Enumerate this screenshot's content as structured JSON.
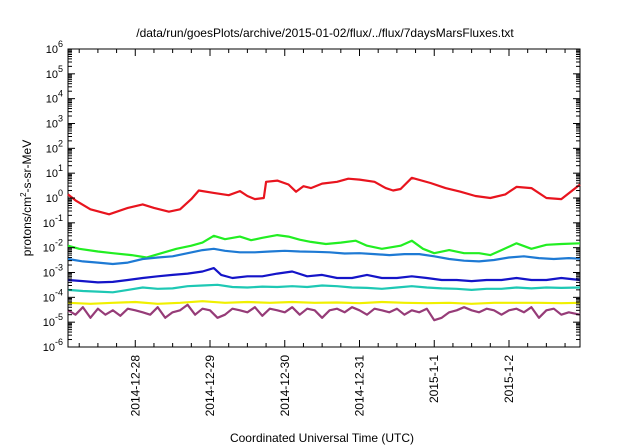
{
  "chart_data": {
    "type": "line",
    "title": "/data/run/goesPlots/archive/2015-01-02/flux/../flux/7daysMarsFluxes.txt",
    "xlabel": "Coordinated Universal Time (UTC)",
    "ylabel_parts": {
      "base": "protons/cm",
      "sup": "2",
      "rest": "-s-sr-MeV"
    },
    "yscale": "log",
    "ylim_exp": [
      -6,
      6
    ],
    "ytick_exponents": [
      -6,
      -5,
      -4,
      -3,
      -2,
      -1,
      0,
      1,
      2,
      3,
      4,
      5,
      6
    ],
    "ytick_base": "10",
    "xlim_days": [
      -0.9,
      5.95
    ],
    "xtick_labels": [
      "2014-12-28",
      "2014-12-29",
      "2014-12-30",
      "2014-12-31",
      "2015-1-1",
      "2015-1-2"
    ],
    "grid": false,
    "legend": "none",
    "series": [
      {
        "color": "#e8141e",
        "x": [
          -0.9,
          -0.8,
          -0.6,
          -0.35,
          -0.1,
          0.1,
          0.25,
          0.45,
          0.6,
          0.75,
          0.85,
          1.05,
          1.25,
          1.4,
          1.5,
          1.6,
          1.72,
          1.75,
          1.9,
          2.05,
          2.15,
          2.25,
          2.35,
          2.5,
          2.7,
          2.85,
          3.0,
          3.2,
          3.35,
          3.45,
          3.55,
          3.7,
          3.95,
          4.15,
          4.35,
          4.55,
          4.75,
          4.95,
          5.1,
          5.3,
          5.5,
          5.7,
          5.95
        ],
        "y": [
          1.4,
          0.8,
          0.35,
          0.22,
          0.4,
          0.55,
          0.4,
          0.28,
          0.35,
          0.9,
          2.0,
          1.6,
          1.3,
          1.9,
          1.2,
          0.9,
          1.0,
          4.5,
          5.0,
          3.5,
          1.8,
          3.0,
          2.5,
          3.8,
          4.5,
          6.0,
          5.5,
          4.5,
          2.5,
          2.0,
          2.3,
          6.5,
          4.0,
          2.5,
          1.8,
          1.2,
          1.0,
          1.4,
          2.8,
          2.5,
          1.0,
          0.9,
          3.5
        ]
      },
      {
        "color": "#22ee22",
        "x": [
          -0.9,
          -0.75,
          -0.5,
          -0.3,
          -0.05,
          0.15,
          0.35,
          0.55,
          0.75,
          0.9,
          1.05,
          1.2,
          1.4,
          1.55,
          1.7,
          1.9,
          2.05,
          2.2,
          2.35,
          2.55,
          2.75,
          2.95,
          3.1,
          3.3,
          3.55,
          3.7,
          3.85,
          4.0,
          4.2,
          4.4,
          4.6,
          4.75,
          4.9,
          5.1,
          5.3,
          5.5,
          5.7,
          5.95
        ],
        "y": [
          0.012,
          0.009,
          0.007,
          0.006,
          0.005,
          0.004,
          0.006,
          0.009,
          0.012,
          0.016,
          0.03,
          0.022,
          0.028,
          0.02,
          0.025,
          0.032,
          0.028,
          0.021,
          0.017,
          0.014,
          0.016,
          0.019,
          0.012,
          0.009,
          0.012,
          0.019,
          0.009,
          0.006,
          0.008,
          0.006,
          0.006,
          0.005,
          0.008,
          0.015,
          0.009,
          0.013,
          0.014,
          0.015
        ]
      },
      {
        "color": "#1e7ad4",
        "x": [
          -0.9,
          -0.7,
          -0.5,
          -0.3,
          -0.1,
          0.1,
          0.3,
          0.5,
          0.7,
          0.9,
          1.05,
          1.2,
          1.4,
          1.6,
          1.8,
          2.0,
          2.2,
          2.4,
          2.6,
          2.8,
          3.0,
          3.2,
          3.4,
          3.6,
          3.8,
          4.0,
          4.2,
          4.4,
          4.6,
          4.8,
          5.0,
          5.2,
          5.4,
          5.6,
          5.8,
          5.95
        ],
        "y": [
          0.0035,
          0.0028,
          0.0025,
          0.0022,
          0.0025,
          0.0035,
          0.004,
          0.0045,
          0.006,
          0.008,
          0.009,
          0.0075,
          0.0065,
          0.0065,
          0.007,
          0.0075,
          0.007,
          0.0068,
          0.0065,
          0.0058,
          0.006,
          0.0055,
          0.005,
          0.0055,
          0.0055,
          0.0045,
          0.0035,
          0.003,
          0.0028,
          0.0032,
          0.004,
          0.0045,
          0.0038,
          0.0035,
          0.0038,
          0.0036
        ]
      },
      {
        "color": "#1414c8",
        "x": [
          -0.9,
          -0.7,
          -0.5,
          -0.3,
          -0.1,
          0.1,
          0.3,
          0.5,
          0.7,
          0.9,
          1.05,
          1.15,
          1.3,
          1.5,
          1.7,
          1.9,
          2.1,
          2.3,
          2.5,
          2.7,
          2.9,
          3.1,
          3.3,
          3.5,
          3.7,
          3.9,
          4.1,
          4.3,
          4.5,
          4.7,
          4.9,
          5.1,
          5.3,
          5.5,
          5.7,
          5.95
        ],
        "y": [
          0.0005,
          0.00045,
          0.0004,
          0.00042,
          0.0005,
          0.0006,
          0.0007,
          0.0008,
          0.0009,
          0.0011,
          0.0015,
          0.0008,
          0.0006,
          0.0007,
          0.0007,
          0.0009,
          0.0011,
          0.0007,
          0.0008,
          0.0006,
          0.0006,
          0.0008,
          0.0006,
          0.0006,
          0.0007,
          0.0006,
          0.0005,
          0.0005,
          0.00045,
          0.0005,
          0.0005,
          0.0006,
          0.0005,
          0.0005,
          0.0006,
          0.0005
        ]
      },
      {
        "color": "#1ec8b4",
        "x": [
          -0.9,
          -0.7,
          -0.5,
          -0.3,
          -0.1,
          0.1,
          0.3,
          0.5,
          0.7,
          0.9,
          1.1,
          1.3,
          1.5,
          1.7,
          1.9,
          2.1,
          2.3,
          2.5,
          2.7,
          2.9,
          3.1,
          3.3,
          3.5,
          3.7,
          3.9,
          4.1,
          4.3,
          4.5,
          4.7,
          4.9,
          5.1,
          5.3,
          5.5,
          5.7,
          5.95
        ],
        "y": [
          0.0002,
          0.00018,
          0.00017,
          0.00016,
          0.0002,
          0.00025,
          0.00022,
          0.00023,
          0.00028,
          0.0003,
          0.00032,
          0.00026,
          0.00025,
          0.00027,
          0.00026,
          0.00028,
          0.00026,
          0.0003,
          0.00028,
          0.00025,
          0.00024,
          0.00022,
          0.00025,
          0.00028,
          0.00025,
          0.00023,
          0.00022,
          0.0002,
          0.00022,
          0.00022,
          0.00025,
          0.00023,
          0.00025,
          0.00024,
          0.00025
        ]
      },
      {
        "color": "#f0f000",
        "x": [
          -0.9,
          -0.6,
          -0.3,
          0.0,
          0.3,
          0.6,
          0.9,
          1.2,
          1.5,
          1.8,
          2.1,
          2.4,
          2.7,
          3.0,
          3.3,
          3.6,
          3.9,
          4.2,
          4.5,
          4.8,
          5.1,
          5.4,
          5.7,
          5.95
        ],
        "y": [
          6e-05,
          5.5e-05,
          6e-05,
          6.5e-05,
          5.5e-05,
          6e-05,
          7e-05,
          6e-05,
          6.5e-05,
          6e-05,
          6.5e-05,
          6e-05,
          6.2e-05,
          5.8e-05,
          6.5e-05,
          6e-05,
          5.8e-05,
          6e-05,
          5.5e-05,
          6e-05,
          6e-05,
          6e-05,
          5.8e-05,
          6e-05
        ]
      },
      {
        "color": "#963c78",
        "x": [
          -0.9,
          -0.8,
          -0.7,
          -0.6,
          -0.5,
          -0.4,
          -0.3,
          -0.2,
          -0.1,
          0.0,
          0.1,
          0.2,
          0.3,
          0.4,
          0.5,
          0.6,
          0.7,
          0.8,
          0.9,
          1.0,
          1.1,
          1.2,
          1.3,
          1.4,
          1.5,
          1.6,
          1.7,
          1.8,
          1.9,
          2.0,
          2.1,
          2.2,
          2.3,
          2.4,
          2.5,
          2.6,
          2.7,
          2.8,
          2.9,
          3.0,
          3.1,
          3.2,
          3.3,
          3.4,
          3.5,
          3.6,
          3.7,
          3.8,
          3.9,
          4.0,
          4.1,
          4.2,
          4.3,
          4.4,
          4.5,
          4.6,
          4.7,
          4.8,
          4.9,
          5.0,
          5.1,
          5.2,
          5.3,
          5.4,
          5.5,
          5.6,
          5.7,
          5.8,
          5.95
        ],
        "y": [
          3e-05,
          2e-05,
          4e-05,
          1.5e-05,
          3.5e-05,
          2e-05,
          3e-05,
          1.8e-05,
          3.5e-05,
          3e-05,
          2.5e-05,
          2e-05,
          4e-05,
          1.5e-05,
          2.5e-05,
          3e-05,
          5e-05,
          2e-05,
          3.5e-05,
          3e-05,
          1.5e-05,
          2e-05,
          3.5e-05,
          3e-05,
          2.5e-05,
          4e-05,
          1.8e-05,
          3.5e-05,
          3e-05,
          2.5e-05,
          4e-05,
          2e-05,
          3.5e-05,
          3e-05,
          1.5e-05,
          3e-05,
          3.5e-05,
          2.5e-05,
          4e-05,
          3e-05,
          2e-05,
          3.5e-05,
          3e-05,
          2.5e-05,
          3.5e-05,
          2e-05,
          3e-05,
          2.5e-05,
          3.5e-05,
          1.2e-05,
          1.5e-05,
          2.5e-05,
          3e-05,
          4e-05,
          3e-05,
          2.5e-05,
          3.5e-05,
          3e-05,
          2e-05,
          3e-05,
          3.5e-05,
          2.5e-05,
          4e-05,
          1.5e-05,
          3e-05,
          3.5e-05,
          2e-05,
          2.5e-05,
          2e-05
        ]
      }
    ]
  }
}
